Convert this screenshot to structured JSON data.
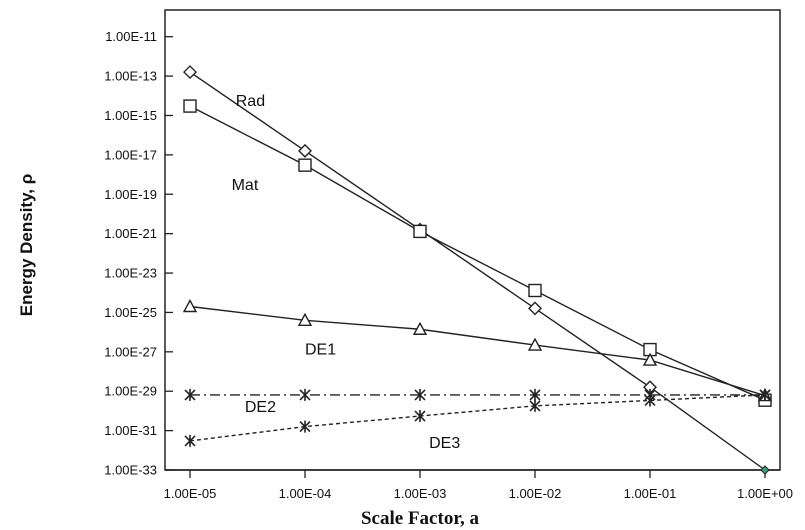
{
  "chart_data": {
    "type": "line",
    "title": "",
    "xlabel": "Scale Factor, a",
    "ylabel": "Energy Density, ρ",
    "x_scale": "log",
    "y_scale": "log",
    "xlim": [
      1e-05,
      1
    ],
    "ylim": [
      1e-33,
      1e-10
    ],
    "x_ticks": [
      {
        "value": 1e-05,
        "label": "1.00E-05"
      },
      {
        "value": 0.0001,
        "label": "1.00E-04"
      },
      {
        "value": 0.001,
        "label": "1.00E-03"
      },
      {
        "value": 0.01,
        "label": "1.00E-02"
      },
      {
        "value": 0.1,
        "label": "1.00E-01"
      },
      {
        "value": 1,
        "label": "1.00E+00"
      }
    ],
    "y_ticks": [
      {
        "value": 1e-11,
        "label": "1.00E-11"
      },
      {
        "value": 1e-13,
        "label": "1.00E-13"
      },
      {
        "value": 1e-15,
        "label": "1.00E-15"
      },
      {
        "value": 1e-17,
        "label": "1.00E-17"
      },
      {
        "value": 1e-19,
        "label": "1.00E-19"
      },
      {
        "value": 1e-21,
        "label": "1.00E-21"
      },
      {
        "value": 1e-23,
        "label": "1.00E-23"
      },
      {
        "value": 1e-25,
        "label": "1.00E-25"
      },
      {
        "value": 1e-27,
        "label": "1.00E-27"
      },
      {
        "value": 1e-29,
        "label": "1.00E-29"
      },
      {
        "value": 1e-31,
        "label": "1.00E-31"
      },
      {
        "value": 1e-33,
        "label": "1.00E-33"
      }
    ],
    "grid": false,
    "x": [
      1e-05,
      0.0001,
      0.001,
      0.01,
      0.1,
      1
    ],
    "series": [
      {
        "name": "Rad",
        "marker": "diamond",
        "line": "solid",
        "label_at": [
          2.5e-05,
          3e-15
        ],
        "values": [
          1.6e-13,
          1.6e-17,
          1.6e-21,
          1.6e-25,
          1.6e-29,
          1e-33
        ]
      },
      {
        "name": "Mat",
        "marker": "square",
        "line": "solid",
        "label_at": [
          2.3e-05,
          1.6e-19
        ],
        "values": [
          3e-15,
          3e-18,
          1.3e-21,
          1.3e-24,
          1.3e-27,
          3.5e-30
        ]
      },
      {
        "name": "DE1",
        "marker": "triangle",
        "line": "solid",
        "label_at": [
          0.0001,
          7.5e-28
        ],
        "values": [
          2e-25,
          4e-26,
          1.4e-26,
          2.2e-27,
          3.8e-28,
          6e-30
        ]
      },
      {
        "name": "DE2",
        "marker": "star",
        "line": "dashdot",
        "label_at": [
          3e-05,
          9e-31
        ],
        "values": [
          6.5e-30,
          6.5e-30,
          6.5e-30,
          6.5e-30,
          6.5e-30,
          6.5e-30
        ]
      },
      {
        "name": "DE3",
        "marker": "star",
        "line": "dashed",
        "label_at": [
          0.0012,
          1.3e-32
        ],
        "values": [
          3e-32,
          1.6e-31,
          5.5e-31,
          1.8e-30,
          3.4e-30,
          6.5e-30
        ]
      }
    ]
  }
}
